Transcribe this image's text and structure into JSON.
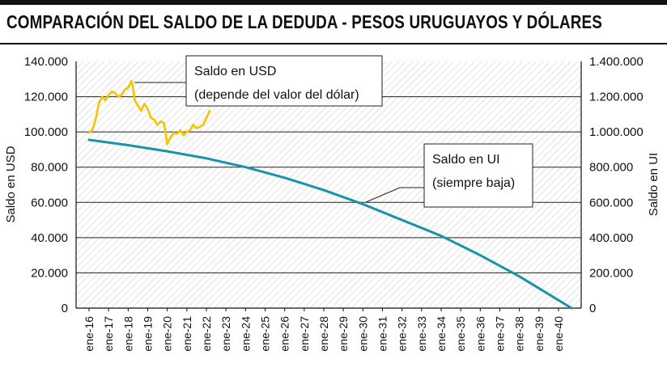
{
  "title": "COMPARACIÓN DEL SALDO DE LA DEDUDA - PESOS URUGUAYOS Y DÓLARES",
  "colors": {
    "usd": "#f5c400",
    "ui": "#1a93a8",
    "grid": "#222222",
    "hatch": "#dcdcdc"
  },
  "annotations": {
    "usd": [
      "Saldo en USD",
      "(depende del valor del dólar)"
    ],
    "ui": [
      "Saldo en UI",
      "(siempre baja)"
    ]
  },
  "chart_data": {
    "type": "line",
    "xlabel": "",
    "ylabel": "Saldo en USD",
    "y2label": "Saldo en UI",
    "ylim": [
      0,
      140000
    ],
    "y2lim": [
      0,
      1400000
    ],
    "yticks": [
      "0",
      "20.000",
      "40.000",
      "60.000",
      "80.000",
      "100.000",
      "120.000",
      "140.000"
    ],
    "y2ticks": [
      "0",
      "200.000",
      "400.000",
      "600.000",
      "800.000",
      "1.000.000",
      "1.200.000",
      "1.400.000"
    ],
    "x_ticks": [
      "ene-16",
      "ene-17",
      "ene-18",
      "ene-19",
      "ene-20",
      "ene-21",
      "ene-22",
      "ene-23",
      "ene-24",
      "ene-25",
      "ene-26",
      "ene-27",
      "ene-28",
      "ene-29",
      "ene-30",
      "ene-31",
      "ene-32",
      "ene-33",
      "ene-34",
      "ene-35",
      "ene-36",
      "ene-37",
      "ene-38",
      "ene-39",
      "ene-40"
    ],
    "grid": true,
    "series": [
      {
        "name": "Saldo en USD",
        "axis": "left",
        "x": [
          "2016-01",
          "2016-03",
          "2016-05",
          "2016-07",
          "2016-09",
          "2016-11",
          "2017-01",
          "2017-03",
          "2017-05",
          "2017-07",
          "2017-09",
          "2017-11",
          "2018-01",
          "2018-03",
          "2018-04",
          "2018-05",
          "2018-07",
          "2018-09",
          "2018-11",
          "2019-01",
          "2019-03",
          "2019-05",
          "2019-07",
          "2019-09",
          "2019-11",
          "2020-01",
          "2020-03",
          "2020-05",
          "2020-07",
          "2020-09",
          "2020-11",
          "2021-01",
          "2021-03",
          "2021-05",
          "2021-07",
          "2021-09",
          "2021-11",
          "2022-01",
          "2022-03"
        ],
        "values": [
          99500,
          101000,
          107000,
          116000,
          120000,
          118000,
          121000,
          123000,
          122000,
          120000,
          121000,
          124000,
          125000,
          129000,
          125000,
          118000,
          115000,
          112000,
          116000,
          113000,
          108000,
          107000,
          104000,
          106000,
          105000,
          93000,
          97000,
          99500,
          99000,
          101000,
          98000,
          100000,
          101000,
          104000,
          102000,
          103000,
          104000,
          108000,
          112000
        ]
      },
      {
        "name": "Saldo en UI",
        "axis": "right",
        "x": [
          "2016-01",
          "2018-01",
          "2020-01",
          "2022-01",
          "2024-01",
          "2026-01",
          "2028-01",
          "2030-01",
          "2032-01",
          "2034-01",
          "2036-01",
          "2038-01",
          "2040-09"
        ],
        "values": [
          955000,
          925000,
          890000,
          850000,
          800000,
          740000,
          670000,
          590000,
          500000,
          410000,
          300000,
          180000,
          0
        ]
      }
    ]
  }
}
